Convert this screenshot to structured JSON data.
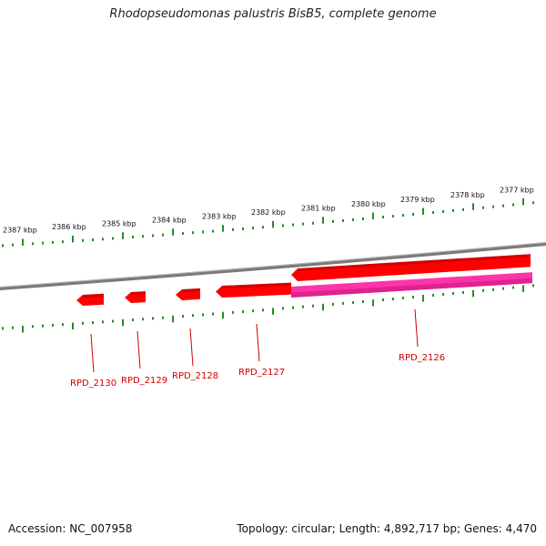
{
  "title": "Rhodopseudomonas palustris BisB5, complete genome",
  "footer": {
    "accession": "Accession: NC_007958",
    "stats": "Topology: circular; Length: 4,892,717 bp; Genes: 4,470"
  },
  "kbp_labels": [
    "2387 kbp",
    "2386 kbp",
    "2385 kbp",
    "2384 kbp",
    "2383 kbp",
    "2382 kbp",
    "2381 kbp",
    "2380 kbp",
    "2379 kbp",
    "2378 kbp",
    "2377 kbp"
  ],
  "genes": [
    {
      "label": "RPD_2130",
      "strand": "forward",
      "color": "#ff0000"
    },
    {
      "label": "RPD_2129",
      "strand": "forward",
      "color": "#ff0000"
    },
    {
      "label": "RPD_2128",
      "strand": "forward",
      "color": "#ff0000"
    },
    {
      "label": "RPD_2127",
      "strand": "forward",
      "color": "#ff0000"
    },
    {
      "label": "RPD_2126",
      "strand": "forward",
      "color": "#ff0000"
    },
    {
      "label": "",
      "strand": "reverse",
      "color": "#ff33aa"
    }
  ],
  "colors": {
    "ticks": "#2a8a2a",
    "backbone": "#808080",
    "gene_forward": "#ff0000",
    "gene_reverse": "#ff33aa",
    "label": "#cc0000"
  }
}
